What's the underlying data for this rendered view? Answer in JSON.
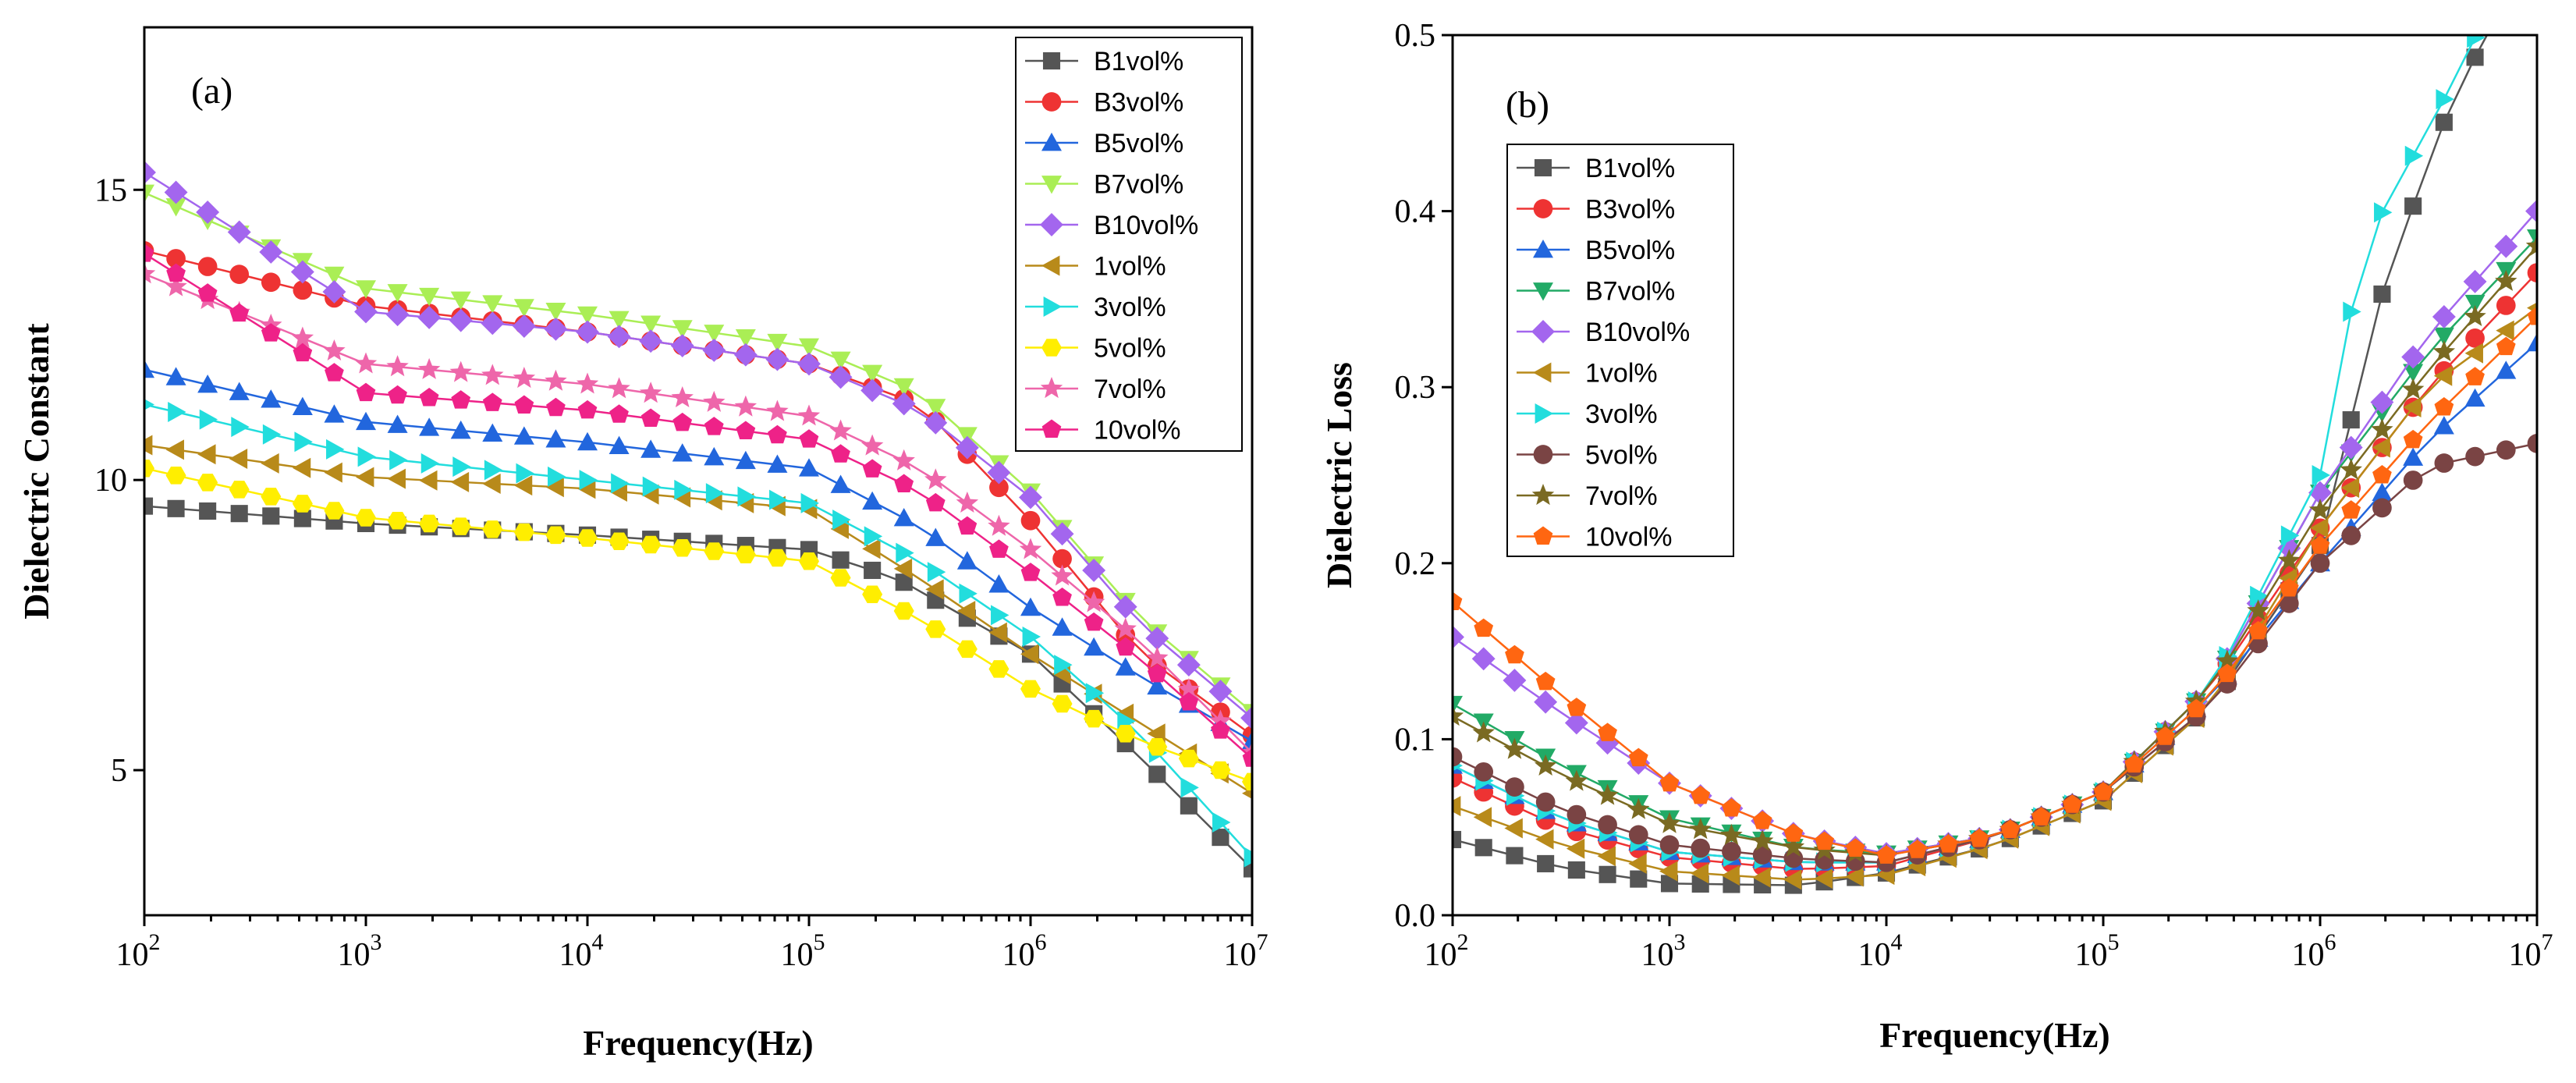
{
  "chart_data": [
    {
      "type": "line",
      "panel": "(a)",
      "xlabel": "Frequency(Hz)",
      "ylabel": "Dielectric Constant",
      "xscale": "log",
      "xlim": [
        100,
        10000000
      ],
      "ylim": [
        2.5,
        17.8
      ],
      "xticks": [
        {
          "base": "10",
          "exp": "2"
        },
        {
          "base": "10",
          "exp": "3"
        },
        {
          "base": "10",
          "exp": "4"
        },
        {
          "base": "10",
          "exp": "5"
        },
        {
          "base": "10",
          "exp": "6"
        },
        {
          "base": "10",
          "exp": "7"
        }
      ],
      "yticks": [
        "5",
        "10",
        "15"
      ],
      "ytick_values": [
        5,
        10,
        15
      ],
      "legend_position": "top-right",
      "series": [
        {
          "name": "B1vol%",
          "color": "#555555",
          "marker": "square",
          "knots": [
            [
              2,
              9.55
            ],
            [
              3,
              9.25
            ],
            [
              4,
              9.05
            ],
            [
              5,
              8.8
            ],
            [
              5.4,
              8.3
            ],
            [
              6,
              7.0
            ],
            [
              6.5,
              5.2
            ],
            [
              7,
              3.3
            ]
          ]
        },
        {
          "name": "B3vol%",
          "color": "#ee3333",
          "marker": "circle",
          "knots": [
            [
              2,
              13.95
            ],
            [
              3,
              13.0
            ],
            [
              4,
              12.55
            ],
            [
              5,
              12.0
            ],
            [
              5.5,
              11.3
            ],
            [
              6,
              9.3
            ],
            [
              6.5,
              7.0
            ],
            [
              7,
              5.6
            ]
          ]
        },
        {
          "name": "B5vol%",
          "color": "#2266dd",
          "marker": "triangle-up",
          "knots": [
            [
              2,
              11.9
            ],
            [
              3,
              11.0
            ],
            [
              4,
              10.65
            ],
            [
              5,
              10.2
            ],
            [
              5.5,
              9.2
            ],
            [
              6,
              7.8
            ],
            [
              6.5,
              6.6
            ],
            [
              7,
              5.5
            ]
          ]
        },
        {
          "name": "B7vol%",
          "color": "#aaee55",
          "marker": "triangle-down",
          "knots": [
            [
              2,
              14.95
            ],
            [
              3,
              13.3
            ],
            [
              4,
              12.85
            ],
            [
              5,
              12.3
            ],
            [
              5.5,
              11.5
            ],
            [
              6,
              9.8
            ],
            [
              6.5,
              7.6
            ],
            [
              7,
              6.0
            ]
          ]
        },
        {
          "name": "B10vol%",
          "color": "#a366ee",
          "marker": "diamond",
          "knots": [
            [
              2,
              15.3
            ],
            [
              3,
              12.9
            ],
            [
              4,
              12.55
            ],
            [
              5,
              12.0
            ],
            [
              5.5,
              11.2
            ],
            [
              6,
              9.7
            ],
            [
              6.5,
              7.5
            ],
            [
              7,
              5.9
            ]
          ]
        },
        {
          "name": "1vol%",
          "color": "#b88a1a",
          "marker": "triangle-left",
          "knots": [
            [
              2,
              10.6
            ],
            [
              3,
              10.05
            ],
            [
              4,
              9.85
            ],
            [
              5,
              9.5
            ],
            [
              5.5,
              8.3
            ],
            [
              6,
              7.0
            ],
            [
              6.5,
              5.8
            ],
            [
              7,
              4.6
            ]
          ]
        },
        {
          "name": "3vol%",
          "color": "#22dddd",
          "marker": "triangle-right",
          "knots": [
            [
              2,
              11.3
            ],
            [
              3,
              10.4
            ],
            [
              4,
              10.0
            ],
            [
              5,
              9.6
            ],
            [
              5.5,
              8.6
            ],
            [
              6,
              7.3
            ],
            [
              6.5,
              5.6
            ],
            [
              7,
              3.5
            ]
          ]
        },
        {
          "name": "5vol%",
          "color": "#ffee00",
          "marker": "hexagon",
          "knots": [
            [
              2,
              10.2
            ],
            [
              3,
              9.35
            ],
            [
              4,
              9.0
            ],
            [
              5,
              8.6
            ],
            [
              5.5,
              7.6
            ],
            [
              6,
              6.4
            ],
            [
              6.5,
              5.5
            ],
            [
              7,
              4.8
            ]
          ]
        },
        {
          "name": "7vol%",
          "color": "#ee66aa",
          "marker": "star",
          "knots": [
            [
              2,
              13.55
            ],
            [
              3,
              12.0
            ],
            [
              4,
              11.65
            ],
            [
              5,
              11.1
            ],
            [
              5.5,
              10.2
            ],
            [
              6,
              8.8
            ],
            [
              6.5,
              7.2
            ],
            [
              7,
              5.3
            ]
          ]
        },
        {
          "name": "10vol%",
          "color": "#ee2288",
          "marker": "pentagon",
          "knots": [
            [
              2,
              13.9
            ],
            [
              3,
              11.5
            ],
            [
              4,
              11.2
            ],
            [
              5,
              10.7
            ],
            [
              5.5,
              9.8
            ],
            [
              6,
              8.4
            ],
            [
              6.5,
              6.9
            ],
            [
              7,
              5.2
            ]
          ]
        }
      ]
    },
    {
      "type": "line",
      "panel": "(b)",
      "xlabel": "Frequency(Hz)",
      "ylabel": "Dielectric Loss",
      "xscale": "log",
      "xlim": [
        100,
        10000000
      ],
      "ylim": [
        0.0,
        0.5
      ],
      "xticks": [
        {
          "base": "10",
          "exp": "2"
        },
        {
          "base": "10",
          "exp": "3"
        },
        {
          "base": "10",
          "exp": "4"
        },
        {
          "base": "10",
          "exp": "5"
        },
        {
          "base": "10",
          "exp": "6"
        },
        {
          "base": "10",
          "exp": "7"
        }
      ],
      "yticks": [
        "0.0",
        "0.1",
        "0.2",
        "0.3",
        "0.4",
        "0.5"
      ],
      "ytick_values": [
        0.0,
        0.1,
        0.2,
        0.3,
        0.4,
        0.5
      ],
      "legend_position": "top-left",
      "series": [
        {
          "name": "B1vol%",
          "color": "#555555",
          "marker": "square",
          "knots": [
            [
              2,
              0.043
            ],
            [
              2.5,
              0.027
            ],
            [
              3,
              0.018
            ],
            [
              3.6,
              0.017
            ],
            [
              4,
              0.024
            ],
            [
              4.5,
              0.04
            ],
            [
              5,
              0.065
            ],
            [
              5.5,
              0.12
            ],
            [
              6,
              0.21
            ],
            [
              6.3,
              0.36
            ],
            [
              6.6,
              0.46
            ],
            [
              6.85,
              0.52
            ]
          ]
        },
        {
          "name": "B3vol%",
          "color": "#ee3333",
          "marker": "circle",
          "knots": [
            [
              2,
              0.078
            ],
            [
              2.5,
              0.05
            ],
            [
              3,
              0.033
            ],
            [
              3.6,
              0.026
            ],
            [
              4,
              0.028
            ],
            [
              4.5,
              0.045
            ],
            [
              5,
              0.07
            ],
            [
              5.5,
              0.13
            ],
            [
              6,
              0.22
            ],
            [
              6.5,
              0.3
            ],
            [
              7,
              0.365
            ]
          ]
        },
        {
          "name": "B5vol%",
          "color": "#2266dd",
          "marker": "triangle-up",
          "knots": [
            [
              2,
              0.085
            ],
            [
              2.5,
              0.055
            ],
            [
              3,
              0.036
            ],
            [
              3.6,
              0.03
            ],
            [
              4,
              0.03
            ],
            [
              4.5,
              0.045
            ],
            [
              5,
              0.07
            ],
            [
              5.5,
              0.125
            ],
            [
              6,
              0.2
            ],
            [
              6.5,
              0.27
            ],
            [
              7,
              0.325
            ]
          ]
        },
        {
          "name": "B7vol%",
          "color": "#22aa66",
          "marker": "triangle-down",
          "knots": [
            [
              2,
              0.12
            ],
            [
              2.5,
              0.085
            ],
            [
              3,
              0.055
            ],
            [
              3.6,
              0.038
            ],
            [
              4,
              0.035
            ],
            [
              4.5,
              0.045
            ],
            [
              5,
              0.07
            ],
            [
              5.5,
              0.13
            ],
            [
              6,
              0.24
            ],
            [
              6.5,
              0.32
            ],
            [
              7,
              0.385
            ]
          ]
        },
        {
          "name": "B10vol%",
          "color": "#a366ee",
          "marker": "diamond",
          "knots": [
            [
              2,
              0.158
            ],
            [
              2.5,
              0.115
            ],
            [
              3,
              0.075
            ],
            [
              3.6,
              0.045
            ],
            [
              4,
              0.035
            ],
            [
              4.5,
              0.045
            ],
            [
              5,
              0.07
            ],
            [
              5.5,
              0.13
            ],
            [
              6,
              0.24
            ],
            [
              6.5,
              0.33
            ],
            [
              7,
              0.4
            ]
          ]
        },
        {
          "name": "1vol%",
          "color": "#b88a1a",
          "marker": "triangle-left",
          "knots": [
            [
              2,
              0.062
            ],
            [
              2.5,
              0.04
            ],
            [
              3,
              0.025
            ],
            [
              3.6,
              0.02
            ],
            [
              4,
              0.023
            ],
            [
              4.5,
              0.04
            ],
            [
              5,
              0.065
            ],
            [
              5.5,
              0.12
            ],
            [
              6,
              0.22
            ],
            [
              6.5,
              0.3
            ],
            [
              7,
              0.345
            ]
          ]
        },
        {
          "name": "3vol%",
          "color": "#22dddd",
          "marker": "triangle-right",
          "knots": [
            [
              2,
              0.085
            ],
            [
              2.5,
              0.055
            ],
            [
              3,
              0.036
            ],
            [
              3.6,
              0.03
            ],
            [
              4,
              0.03
            ],
            [
              4.5,
              0.045
            ],
            [
              5,
              0.07
            ],
            [
              5.5,
              0.13
            ],
            [
              6,
              0.25
            ],
            [
              6.2,
              0.38
            ],
            [
              6.6,
              0.47
            ],
            [
              6.8,
              0.52
            ]
          ]
        },
        {
          "name": "5vol%",
          "color": "#7a4444",
          "marker": "circle",
          "knots": [
            [
              2,
              0.09
            ],
            [
              2.5,
              0.06
            ],
            [
              3,
              0.04
            ],
            [
              3.6,
              0.032
            ],
            [
              4,
              0.03
            ],
            [
              4.5,
              0.045
            ],
            [
              5,
              0.07
            ],
            [
              5.5,
              0.12
            ],
            [
              6,
              0.2
            ],
            [
              6.5,
              0.255
            ],
            [
              7,
              0.268
            ]
          ]
        },
        {
          "name": "7vol%",
          "color": "#7a6a22",
          "marker": "star",
          "knots": [
            [
              2,
              0.113
            ],
            [
              2.5,
              0.08
            ],
            [
              3,
              0.052
            ],
            [
              3.6,
              0.038
            ],
            [
              4,
              0.034
            ],
            [
              4.5,
              0.045
            ],
            [
              5,
              0.07
            ],
            [
              5.5,
              0.13
            ],
            [
              6,
              0.23
            ],
            [
              6.5,
              0.31
            ],
            [
              7,
              0.38
            ]
          ]
        },
        {
          "name": "10vol%",
          "color": "#ff6611",
          "marker": "pentagon",
          "knots": [
            [
              2,
              0.178
            ],
            [
              2.5,
              0.125
            ],
            [
              3,
              0.075
            ],
            [
              3.6,
              0.045
            ],
            [
              4,
              0.034
            ],
            [
              4.5,
              0.045
            ],
            [
              5,
              0.07
            ],
            [
              5.5,
              0.125
            ],
            [
              6,
              0.21
            ],
            [
              6.5,
              0.28
            ],
            [
              7,
              0.34
            ]
          ]
        }
      ]
    }
  ]
}
